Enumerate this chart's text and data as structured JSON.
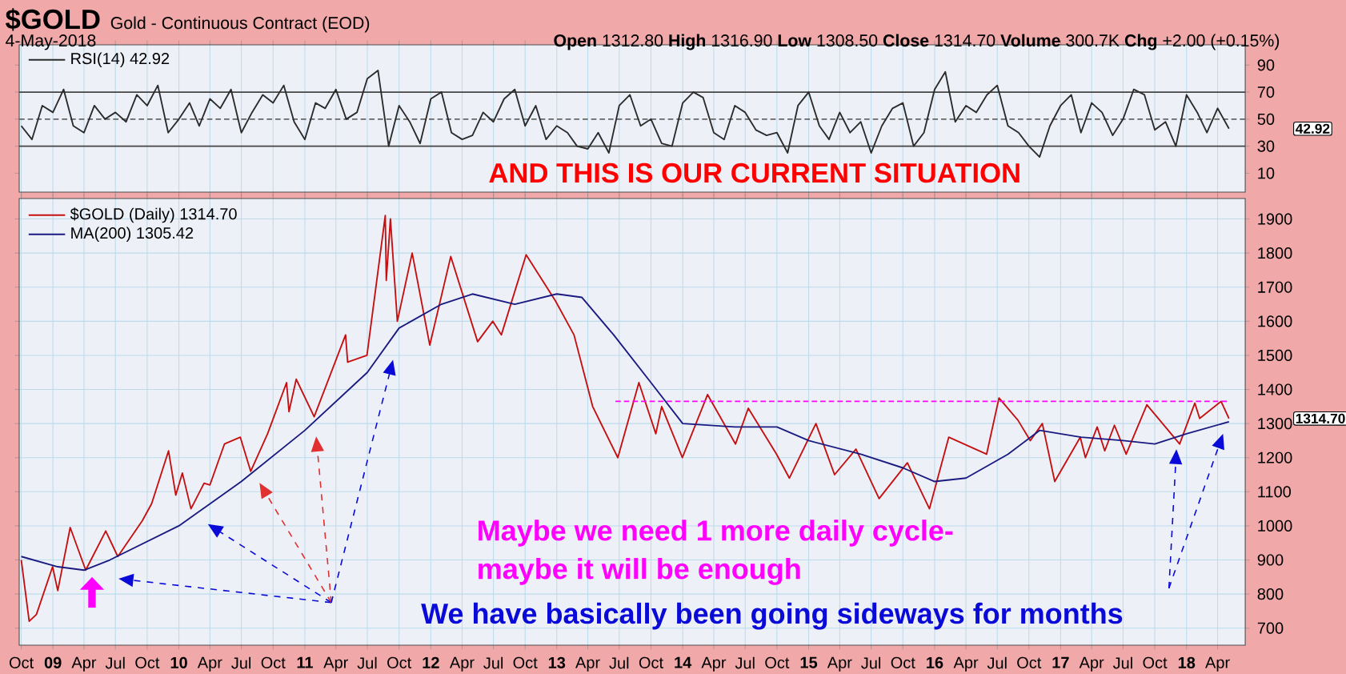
{
  "chart_data": [
    {
      "type": "line",
      "title": "$GOLD",
      "subtitle": "Gold - Continuous Contract (EOD)",
      "annotations": [
        "4-May-2018",
        "**Open** 1312.80 **High** 1316.90 **Low** 1308.50 **Close** 1314.70 **Volume** 300.7K **Chg** +2.00 (+0.15%)",
        "AND THIS IS OUR CURRENT SITUATION",
        "42.92"
      ],
      "x": [
        "2008-10",
        "2008-11",
        "2008-12",
        "2009-01",
        "2009-02",
        "2009-03",
        "2009-04",
        "2009-05",
        "2009-06",
        "2009-07",
        "2009-08",
        "2009-09",
        "2009-10",
        "2009-11",
        "2009-12",
        "2010-01",
        "2010-02",
        "2010-03",
        "2010-04",
        "2010-05",
        "2010-06",
        "2010-07",
        "2010-08",
        "2010-09",
        "2010-10",
        "2010-11",
        "2010-12",
        "2011-01",
        "2011-02",
        "2011-03",
        "2011-04",
        "2011-05",
        "2011-06",
        "2011-07",
        "2011-08",
        "2011-09",
        "2011-10",
        "2011-11",
        "2011-12",
        "2012-01",
        "2012-02",
        "2012-03",
        "2012-04",
        "2012-05",
        "2012-06",
        "2012-07",
        "2012-08",
        "2012-09",
        "2012-10",
        "2012-11",
        "2012-12",
        "2013-01",
        "2013-02",
        "2013-03",
        "2013-04",
        "2013-05",
        "2013-06",
        "2013-07",
        "2013-08",
        "2013-09",
        "2013-10",
        "2013-11",
        "2013-12",
        "2014-01",
        "2014-02",
        "2014-03",
        "2014-04",
        "2014-05",
        "2014-06",
        "2014-07",
        "2014-08",
        "2014-09",
        "2014-10",
        "2014-11",
        "2014-12",
        "2015-01",
        "2015-02",
        "2015-03",
        "2015-04",
        "2015-05",
        "2015-06",
        "2015-07",
        "2015-08",
        "2015-09",
        "2015-10",
        "2015-11",
        "2015-12",
        "2016-01",
        "2016-02",
        "2016-03",
        "2016-04",
        "2016-05",
        "2016-06",
        "2016-07",
        "2016-08",
        "2016-09",
        "2016-10",
        "2016-11",
        "2016-12",
        "2017-01",
        "2017-02",
        "2017-03",
        "2017-04",
        "2017-05",
        "2017-06",
        "2017-07",
        "2017-08",
        "2017-09",
        "2017-10",
        "2017-11",
        "2017-12",
        "2018-01",
        "2018-02",
        "2018-03",
        "2018-04",
        "2018-05-04"
      ],
      "series": [
        {
          "name": "RSI(14) 42.92",
          "color": "#2b2b2b",
          "values": [
            45,
            35,
            60,
            55,
            72,
            45,
            40,
            60,
            50,
            55,
            48,
            68,
            60,
            75,
            40,
            50,
            62,
            45,
            65,
            58,
            72,
            40,
            55,
            68,
            62,
            75,
            48,
            35,
            62,
            58,
            72,
            50,
            55,
            80,
            86,
            30,
            60,
            48,
            32,
            65,
            70,
            40,
            35,
            38,
            55,
            48,
            65,
            72,
            45,
            60,
            35,
            45,
            40,
            30,
            28,
            40,
            25,
            60,
            68,
            45,
            50,
            32,
            30,
            62,
            70,
            66,
            40,
            35,
            60,
            55,
            42,
            38,
            40,
            25,
            60,
            70,
            45,
            35,
            55,
            40,
            48,
            25,
            45,
            58,
            62,
            30,
            40,
            72,
            85,
            48,
            60,
            55,
            68,
            75,
            45,
            40,
            30,
            22,
            45,
            60,
            68,
            40,
            62,
            55,
            38,
            50,
            72,
            68,
            42,
            48,
            30,
            68,
            55,
            40,
            58,
            42.92
          ]
        }
      ],
      "ref_lines": [
        {
          "axis": "y",
          "value": 70,
          "color": "#444444",
          "line_style": "solid"
        },
        {
          "axis": "y",
          "value": 50,
          "color": "#666666",
          "line_style": "dashed"
        },
        {
          "axis": "y",
          "value": 30,
          "color": "#444444",
          "line_style": "solid"
        }
      ],
      "xlim": [
        "2008-09-25",
        "2018-06-20"
      ],
      "xticks": [
        {
          "value": "2008-10",
          "label": null
        },
        {
          "value": "2009-01",
          "label": null
        },
        {
          "value": "2009-04",
          "label": null
        },
        {
          "value": "2009-07",
          "label": null
        },
        {
          "value": "2009-10",
          "label": null
        },
        {
          "value": "2010-01",
          "label": null
        },
        {
          "value": "2010-04",
          "label": null
        },
        {
          "value": "2010-07",
          "label": null
        },
        {
          "value": "2010-10",
          "label": null
        },
        {
          "value": "2011-01",
          "label": null
        },
        {
          "value": "2011-04",
          "label": null
        },
        {
          "value": "2011-07",
          "label": null
        },
        {
          "value": "2011-10",
          "label": null
        },
        {
          "value": "2012-01",
          "label": null
        },
        {
          "value": "2012-04",
          "label": null
        },
        {
          "value": "2012-07",
          "label": null
        },
        {
          "value": "2012-10",
          "label": null
        },
        {
          "value": "2013-01",
          "label": null
        },
        {
          "value": "2013-04",
          "label": null
        },
        {
          "value": "2013-07",
          "label": null
        },
        {
          "value": "2013-10",
          "label": null
        },
        {
          "value": "2014-01",
          "label": null
        },
        {
          "value": "2014-04",
          "label": null
        },
        {
          "value": "2014-07",
          "label": null
        },
        {
          "value": "2014-10",
          "label": null
        },
        {
          "value": "2015-01",
          "label": null
        },
        {
          "value": "2015-04",
          "label": null
        },
        {
          "value": "2015-07",
          "label": null
        },
        {
          "value": "2015-10",
          "label": null
        },
        {
          "value": "2016-01",
          "label": null
        },
        {
          "value": "2016-04",
          "label": null
        },
        {
          "value": "2016-07",
          "label": null
        },
        {
          "value": "2016-10",
          "label": null
        },
        {
          "value": "2017-01",
          "label": null
        },
        {
          "value": "2017-04",
          "label": null
        },
        {
          "value": "2017-07",
          "label": null
        },
        {
          "value": "2017-10",
          "label": null
        },
        {
          "value": "2018-01",
          "label": null
        },
        {
          "value": "2018-04",
          "label": null
        }
      ],
      "ylim": [
        -4,
        105
      ],
      "yticks": [
        10,
        30,
        50,
        70,
        90
      ],
      "tick_labels": "y",
      "grid": "x",
      "legend": "top left",
      "marker": "none"
    },
    {
      "type": "line",
      "annotations": [
        "Maybe we need 1 more daily cycle-",
        "maybe it will be enough",
        "We have basically been going sideways for months",
        "1314.70"
      ],
      "series": [
        {
          "name": "$GOLD (Daily) 1314.70",
          "color": "#c41010",
          "x": [
            "2008-10-01",
            "2008-10-24",
            "2008-11-14",
            "2008-12-31",
            "2009-01-15",
            "2009-02-20",
            "2009-04-06",
            "2009-06-03",
            "2009-07-08",
            "2009-09-17",
            "2009-10-14",
            "2009-12-02",
            "2009-12-23",
            "2010-01-11",
            "2010-02-05",
            "2010-03-15",
            "2010-04-01",
            "2010-05-13",
            "2010-06-28",
            "2010-07-28",
            "2010-09-15",
            "2010-11-09",
            "2010-11-16",
            "2010-12-07",
            "2011-01-28",
            "2011-04-29",
            "2011-05-05",
            "2011-06-30",
            "2011-08-22",
            "2011-08-25",
            "2011-09-06",
            "2011-09-26",
            "2011-11-08",
            "2011-12-29",
            "2012-02-28",
            "2012-05-16",
            "2012-06-29",
            "2012-07-24",
            "2012-10-04",
            "2012-12-28",
            "2013-02-20",
            "2013-04-15",
            "2013-06-27",
            "2013-08-27",
            "2013-10-15",
            "2013-11-01",
            "2013-12-31",
            "2014-03-14",
            "2014-06-03",
            "2014-07-10",
            "2014-09-30",
            "2014-11-06",
            "2015-01-22",
            "2015-03-17",
            "2015-05-18",
            "2015-07-24",
            "2015-10-14",
            "2015-12-17",
            "2016-02-11",
            "2016-05-31",
            "2016-07-06",
            "2016-08-30",
            "2016-10-05",
            "2016-11-09",
            "2016-12-15",
            "2017-02-27",
            "2017-03-14",
            "2017-04-17",
            "2017-05-09",
            "2017-06-06",
            "2017-07-10",
            "2017-09-08",
            "2017-12-12",
            "2018-01-25",
            "2018-02-08",
            "2018-04-11",
            "2018-05-04"
          ],
          "values": [
            900,
            720,
            740,
            880,
            810,
            995,
            870,
            985,
            910,
            1015,
            1065,
            1220,
            1090,
            1155,
            1050,
            1125,
            1120,
            1240,
            1260,
            1160,
            1270,
            1420,
            1335,
            1430,
            1320,
            1560,
            1480,
            1500,
            1910,
            1720,
            1900,
            1600,
            1800,
            1530,
            1790,
            1540,
            1600,
            1560,
            1795,
            1660,
            1560,
            1350,
            1200,
            1420,
            1270,
            1350,
            1200,
            1385,
            1240,
            1345,
            1210,
            1140,
            1300,
            1150,
            1225,
            1080,
            1185,
            1050,
            1260,
            1210,
            1375,
            1310,
            1250,
            1300,
            1130,
            1260,
            1200,
            1290,
            1220,
            1295,
            1210,
            1355,
            1240,
            1360,
            1315,
            1365,
            1314.7
          ]
        },
        {
          "name": "MA(200) 1305.42",
          "color": "#1a1a80",
          "x": [
            "2008-10-01",
            "2009-01-15",
            "2009-04-01",
            "2009-06-15",
            "2010-01-01",
            "2010-07-01",
            "2011-01-01",
            "2011-07-01",
            "2011-10-01",
            "2012-02-01",
            "2012-05-01",
            "2012-09-01",
            "2013-01-01",
            "2013-03-15",
            "2013-06-15",
            "2013-10-01",
            "2014-01-01",
            "2014-06-01",
            "2014-10-01",
            "2015-01-01",
            "2015-06-01",
            "2015-10-01",
            "2016-01-01",
            "2016-04-01",
            "2016-08-01",
            "2016-11-01",
            "2017-03-01",
            "2017-07-01",
            "2017-10-01",
            "2018-01-01",
            "2018-05-04"
          ],
          "values": [
            910,
            880,
            870,
            900,
            1000,
            1130,
            1280,
            1450,
            1580,
            1650,
            1680,
            1650,
            1680,
            1670,
            1560,
            1420,
            1300,
            1290,
            1290,
            1250,
            1210,
            1170,
            1130,
            1140,
            1210,
            1280,
            1260,
            1250,
            1240,
            1270,
            1305.42
          ]
        },
        {
          "color": "#ff00ff",
          "line_style": "dashed",
          "x": [
            "2013-06-20",
            "2018-05-04"
          ],
          "values": [
            1365,
            1365
          ]
        }
      ],
      "xlim": [
        "2008-09-25",
        "2018-06-20"
      ],
      "xticks": [
        {
          "value": "2008-10",
          "label": "Oct"
        },
        {
          "value": "2009-01",
          "label": "**09**"
        },
        {
          "value": "2009-04",
          "label": "Apr"
        },
        {
          "value": "2009-07",
          "label": "Jul"
        },
        {
          "value": "2009-10",
          "label": "Oct"
        },
        {
          "value": "2010-01",
          "label": "**10**"
        },
        {
          "value": "2010-04",
          "label": "Apr"
        },
        {
          "value": "2010-07",
          "label": "Jul"
        },
        {
          "value": "2010-10",
          "label": "Oct"
        },
        {
          "value": "2011-01",
          "label": "**11**"
        },
        {
          "value": "2011-04",
          "label": "Apr"
        },
        {
          "value": "2011-07",
          "label": "Jul"
        },
        {
          "value": "2011-10",
          "label": "Oct"
        },
        {
          "value": "2012-01",
          "label": "**12**"
        },
        {
          "value": "2012-04",
          "label": "Apr"
        },
        {
          "value": "2012-07",
          "label": "Jul"
        },
        {
          "value": "2012-10",
          "label": "Oct"
        },
        {
          "value": "2013-01",
          "label": "**13**"
        },
        {
          "value": "2013-04",
          "label": "Apr"
        },
        {
          "value": "2013-07",
          "label": "Jul"
        },
        {
          "value": "2013-10",
          "label": "Oct"
        },
        {
          "value": "2014-01",
          "label": "**14**"
        },
        {
          "value": "2014-04",
          "label": "Apr"
        },
        {
          "value": "2014-07",
          "label": "Jul"
        },
        {
          "value": "2014-10",
          "label": "Oct"
        },
        {
          "value": "2015-01",
          "label": "**15**"
        },
        {
          "value": "2015-04",
          "label": "Apr"
        },
        {
          "value": "2015-07",
          "label": "Jul"
        },
        {
          "value": "2015-10",
          "label": "Oct"
        },
        {
          "value": "2016-01",
          "label": "**16**"
        },
        {
          "value": "2016-04",
          "label": "Apr"
        },
        {
          "value": "2016-07",
          "label": "Jul"
        },
        {
          "value": "2016-10",
          "label": "Oct"
        },
        {
          "value": "2017-01",
          "label": "**17**"
        },
        {
          "value": "2017-04",
          "label": "Apr"
        },
        {
          "value": "2017-07",
          "label": "Jul"
        },
        {
          "value": "2017-10",
          "label": "Oct"
        },
        {
          "value": "2018-01",
          "label": "**18**"
        },
        {
          "value": "2018-04",
          "label": "Apr"
        }
      ],
      "ylim": [
        650,
        1960
      ],
      "yticks": [
        700,
        800,
        900,
        1000,
        1100,
        1200,
        1300,
        1400,
        1500,
        1600,
        1700,
        1800,
        1900
      ],
      "grid": true,
      "legend": "top left",
      "marker": "none"
    }
  ]
}
